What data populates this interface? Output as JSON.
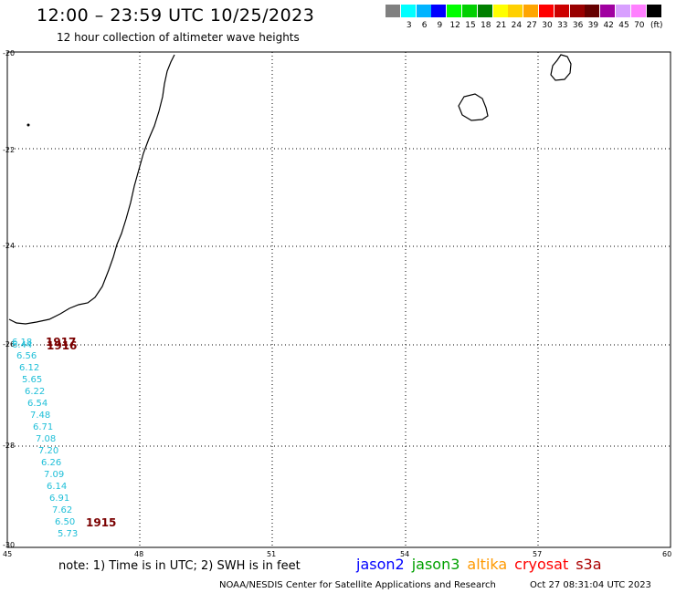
{
  "header": {
    "title": "12:00 – 23:59 UTC 10/25/2023",
    "subtitle": "12 hour collection of altimeter wave heights"
  },
  "color_scale": {
    "unit": "(ft)",
    "bins": [
      {
        "label": "",
        "color": "#808080"
      },
      {
        "label": "3",
        "color": "#00ffff"
      },
      {
        "label": "6",
        "color": "#00b4ff"
      },
      {
        "label": "9",
        "color": "#0000ff"
      },
      {
        "label": "12",
        "color": "#00ff00"
      },
      {
        "label": "15",
        "color": "#00d000"
      },
      {
        "label": "18",
        "color": "#008000"
      },
      {
        "label": "21",
        "color": "#ffff00"
      },
      {
        "label": "24",
        "color": "#ffd000"
      },
      {
        "label": "27",
        "color": "#ffa500"
      },
      {
        "label": "30",
        "color": "#ff0000"
      },
      {
        "label": "33",
        "color": "#cc0000"
      },
      {
        "label": "36",
        "color": "#990000"
      },
      {
        "label": "39",
        "color": "#660000"
      },
      {
        "label": "42",
        "color": "#a000a0"
      },
      {
        "label": "45",
        "color": "#d8a0ff"
      },
      {
        "label": "70",
        "color": "#ff80ff"
      },
      {
        "label": "",
        "color": "#000000"
      }
    ]
  },
  "map": {
    "lon_ticks": [
      "45",
      "48",
      "51",
      "54",
      "57",
      "60"
    ],
    "lat_ticks": [
      "-20",
      "-22",
      "-24",
      "-26",
      "-28",
      "-30"
    ],
    "swh_color": "#1fbfd8",
    "pass_color": "#7a0000",
    "swh_values": [
      "6.18",
      "6.44",
      "6.56",
      "6.12",
      "5.65",
      "6.22",
      "6.54",
      "7.48",
      "6.71",
      "7.08",
      "7.20",
      "6.26",
      "7.09",
      "6.14",
      "6.91",
      "7.62",
      "6.50",
      "5.73"
    ],
    "pass_times": [
      "1917",
      "1916",
      "1915"
    ]
  },
  "footer": {
    "note": "note: 1) Time is in UTC; 2) SWH is in feet",
    "satellites": [
      {
        "name": "jason2",
        "color": "#0000ff"
      },
      {
        "name": "jason3",
        "color": "#00a000"
      },
      {
        "name": "altika",
        "color": "#ff9900"
      },
      {
        "name": "cryosat",
        "color": "#ff0000"
      },
      {
        "name": "s3a",
        "color": "#aa0000"
      }
    ],
    "credit": "NOAA/NESDIS Center for Satellite Applications and Research",
    "generated": "Oct 27 08:31:04 UTC 2023"
  }
}
